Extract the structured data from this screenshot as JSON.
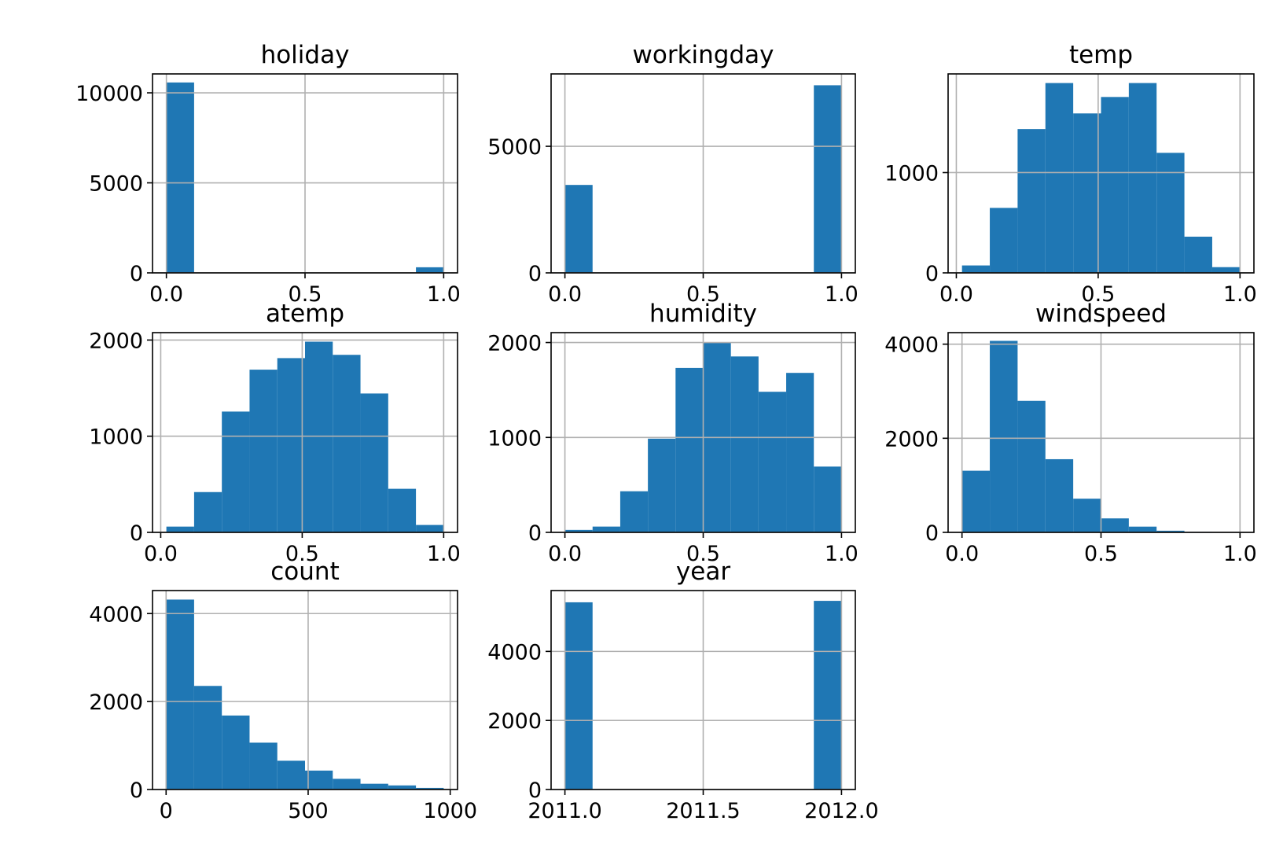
{
  "chart_data": [
    {
      "type": "histogram",
      "title": "holiday",
      "bins": [
        0,
        0.1,
        0.2,
        0.3,
        0.4,
        0.5,
        0.6,
        0.7,
        0.8,
        0.9,
        1.0
      ],
      "values": [
        10575,
        0,
        0,
        0,
        0,
        0,
        0,
        0,
        0,
        311
      ],
      "color": "#1f77b4",
      "xlim": [
        -0.05,
        1.05
      ],
      "ylim": [
        0,
        11050
      ],
      "xticks": [
        {
          "value": 0,
          "label": "0.0"
        },
        0.5,
        {
          "value": 1,
          "label": "1.0"
        }
      ],
      "yticks": [
        0,
        5000,
        10000
      ],
      "grid": true
    },
    {
      "type": "histogram",
      "title": "workingday",
      "bins": [
        0,
        0.1,
        0.2,
        0.3,
        0.4,
        0.5,
        0.6,
        0.7,
        0.8,
        0.9,
        1.0
      ],
      "values": [
        3474,
        0,
        0,
        0,
        0,
        0,
        0,
        0,
        0,
        7412
      ],
      "color": "#1f77b4",
      "xlim": [
        -0.05,
        1.05
      ],
      "ylim": [
        0,
        7860
      ],
      "xticks": [
        {
          "value": 0,
          "label": "0.0"
        },
        0.5,
        {
          "value": 1,
          "label": "1.0"
        }
      ],
      "yticks": [
        0,
        5000
      ],
      "grid": true
    },
    {
      "type": "histogram",
      "title": "temp",
      "bins": [
        0.02,
        0.118,
        0.216,
        0.314,
        0.412,
        0.51,
        0.608,
        0.706,
        0.804,
        0.902,
        1.0
      ],
      "values": [
        74,
        648,
        1434,
        1893,
        1590,
        1754,
        1893,
        1197,
        361,
        57
      ],
      "color": "#1f77b4",
      "xlim": [
        -0.029,
        1.049
      ],
      "ylim": [
        0,
        1984
      ],
      "xticks": [
        {
          "value": 0,
          "label": "0.0"
        },
        0.5,
        {
          "value": 1,
          "label": "1.0"
        }
      ],
      "yticks": [
        0,
        1000
      ],
      "grid": true
    },
    {
      "type": "histogram",
      "title": "atemp",
      "bins": [
        0.02,
        0.118,
        0.216,
        0.314,
        0.412,
        0.51,
        0.608,
        0.706,
        0.804,
        0.902,
        1.0
      ],
      "values": [
        60,
        419,
        1256,
        1692,
        1812,
        1983,
        1846,
        1444,
        453,
        77
      ],
      "color": "#1f77b4",
      "xlim": [
        -0.029,
        1.049
      ],
      "ylim": [
        0,
        2077
      ],
      "xticks": [
        {
          "value": 0,
          "label": "0.0"
        },
        0.5,
        {
          "value": 1,
          "label": "1.0"
        }
      ],
      "yticks": [
        0,
        1000,
        2000
      ],
      "grid": true
    },
    {
      "type": "histogram",
      "title": "humidity",
      "bins": [
        0,
        0.1,
        0.2,
        0.3,
        0.4,
        0.5,
        0.6,
        0.7,
        0.8,
        0.9,
        1.0
      ],
      "values": [
        26,
        61,
        433,
        987,
        1732,
        2000,
        1853,
        1481,
        1680,
        693
      ],
      "color": "#1f77b4",
      "xlim": [
        -0.05,
        1.05
      ],
      "ylim": [
        0,
        2104
      ],
      "xticks": [
        {
          "value": 0,
          "label": "0.0"
        },
        0.5,
        {
          "value": 1,
          "label": "1.0"
        }
      ],
      "yticks": [
        0,
        1000,
        2000
      ],
      "grid": true
    },
    {
      "type": "histogram",
      "title": "windspeed",
      "bins": [
        0,
        0.1,
        0.2,
        0.3,
        0.4,
        0.5,
        0.6,
        0.7,
        0.8,
        0.9,
        1.0
      ],
      "values": [
        1310,
        4070,
        2795,
        1555,
        716,
        297,
        122,
        35,
        10,
        5
      ],
      "color": "#1f77b4",
      "xlim": [
        -0.05,
        1.05
      ],
      "ylim": [
        0,
        4245
      ],
      "xticks": [
        {
          "value": 0,
          "label": "0.0"
        },
        0.5,
        {
          "value": 1,
          "label": "1.0"
        }
      ],
      "yticks": [
        0,
        2000,
        4000
      ],
      "grid": true
    },
    {
      "type": "histogram",
      "title": "count",
      "bins": [
        1,
        98.6,
        196.2,
        293.8,
        391.4,
        489,
        586.6,
        684.2,
        781.8,
        879.4,
        977
      ],
      "values": [
        4318,
        2355,
        1682,
        1065,
        654,
        430,
        243,
        131,
        93,
        37
      ],
      "color": "#1f77b4",
      "xlim": [
        -47.8,
        1025.8
      ],
      "ylim": [
        0,
        4523
      ],
      "xticks": [
        0,
        500,
        1000
      ],
      "yticks": [
        0,
        2000,
        4000
      ],
      "grid": true
    },
    {
      "type": "histogram",
      "title": "year",
      "bins": [
        2011,
        2011.1,
        2011.2,
        2011.3,
        2011.4,
        2011.5,
        2011.6,
        2011.7,
        2011.8,
        2011.9,
        2012
      ],
      "values": [
        5422,
        0,
        0,
        0,
        0,
        0,
        0,
        0,
        0,
        5464
      ],
      "color": "#1f77b4",
      "xlim": [
        2010.95,
        2012.05
      ],
      "ylim": [
        0,
        5762
      ],
      "xticks": [
        {
          "value": 2011,
          "label": "2011.0"
        },
        2011.5,
        {
          "value": 2012,
          "label": "2012.0"
        }
      ],
      "yticks": [
        0,
        2000,
        4000
      ],
      "grid": true
    }
  ]
}
